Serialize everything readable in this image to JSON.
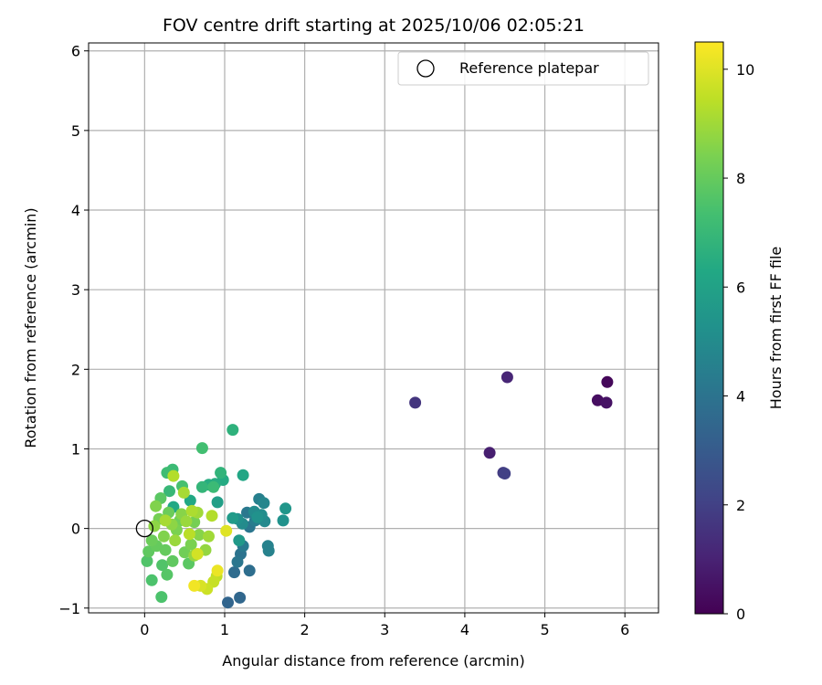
{
  "chart_data": {
    "type": "scatter",
    "title": "FOV centre drift starting at 2025/10/06 02:05:21",
    "xlabel": "Angular distance from reference (arcmin)",
    "ylabel": "Rotation from reference (arcmin)",
    "xlim": [
      -0.7,
      6.42
    ],
    "ylim": [
      -1.06,
      6.1
    ],
    "xticks": [
      0,
      1,
      2,
      3,
      4,
      5,
      6
    ],
    "yticks": [
      -1,
      0,
      1,
      2,
      3,
      4,
      5,
      6
    ],
    "grid": true,
    "legend": {
      "position": "top-right",
      "entries": [
        "Reference platepar"
      ]
    },
    "reference_point": {
      "x": 0,
      "y": 0,
      "label": "Reference platepar"
    },
    "colorbar": {
      "label": "Hours from first FF file",
      "colormap": "viridis",
      "range": [
        0,
        10.5
      ],
      "ticks": [
        0,
        2,
        4,
        6,
        8,
        10
      ]
    },
    "points": [
      {
        "x": 5.78,
        "y": 1.84,
        "c": 0.2
      },
      {
        "x": 5.66,
        "y": 1.61,
        "c": 0.4
      },
      {
        "x": 5.77,
        "y": 1.58,
        "c": 0.5
      },
      {
        "x": 4.31,
        "y": 0.95,
        "c": 0.9
      },
      {
        "x": 4.53,
        "y": 1.9,
        "c": 1.1
      },
      {
        "x": 3.38,
        "y": 1.58,
        "c": 1.6
      },
      {
        "x": 4.48,
        "y": 0.7,
        "c": 1.8
      },
      {
        "x": 4.5,
        "y": 0.69,
        "c": 2.0
      },
      {
        "x": 1.04,
        "y": -0.93,
        "c": 3.4
      },
      {
        "x": 1.19,
        "y": -0.87,
        "c": 3.5
      },
      {
        "x": 1.12,
        "y": -0.55,
        "c": 3.7
      },
      {
        "x": 1.31,
        "y": -0.53,
        "c": 3.8
      },
      {
        "x": 1.2,
        "y": -0.32,
        "c": 4.0
      },
      {
        "x": 1.16,
        "y": -0.42,
        "c": 4.1
      },
      {
        "x": 1.31,
        "y": 0.02,
        "c": 4.1
      },
      {
        "x": 1.28,
        "y": 0.2,
        "c": 4.2
      },
      {
        "x": 1.23,
        "y": -0.22,
        "c": 4.3
      },
      {
        "x": 1.38,
        "y": 0.1,
        "c": 4.4
      },
      {
        "x": 1.43,
        "y": 0.37,
        "c": 4.5
      },
      {
        "x": 1.54,
        "y": -0.22,
        "c": 4.6
      },
      {
        "x": 1.55,
        "y": -0.28,
        "c": 4.6
      },
      {
        "x": 1.49,
        "y": 0.32,
        "c": 4.8
      },
      {
        "x": 1.5,
        "y": 0.09,
        "c": 4.9
      },
      {
        "x": 1.22,
        "y": 0.06,
        "c": 5.0
      },
      {
        "x": 1.37,
        "y": 0.21,
        "c": 5.0
      },
      {
        "x": 1.46,
        "y": 0.17,
        "c": 5.1
      },
      {
        "x": 1.16,
        "y": 0.12,
        "c": 5.2
      },
      {
        "x": 1.41,
        "y": 0.14,
        "c": 5.3
      },
      {
        "x": 1.73,
        "y": 0.1,
        "c": 5.3
      },
      {
        "x": 1.76,
        "y": 0.25,
        "c": 5.5
      },
      {
        "x": 1.18,
        "y": -0.15,
        "c": 5.6
      },
      {
        "x": 1.1,
        "y": 0.13,
        "c": 5.7
      },
      {
        "x": 0.91,
        "y": 0.33,
        "c": 5.9
      },
      {
        "x": 1.23,
        "y": 0.67,
        "c": 6.2
      },
      {
        "x": 0.57,
        "y": 0.35,
        "c": 6.3
      },
      {
        "x": 0.36,
        "y": 0.27,
        "c": 6.3
      },
      {
        "x": 0.98,
        "y": 0.61,
        "c": 6.4
      },
      {
        "x": 0.88,
        "y": 0.56,
        "c": 6.5
      },
      {
        "x": 0.8,
        "y": 0.55,
        "c": 6.5
      },
      {
        "x": 1.1,
        "y": 1.24,
        "c": 6.7
      },
      {
        "x": 0.95,
        "y": 0.7,
        "c": 6.8
      },
      {
        "x": 0.72,
        "y": 0.52,
        "c": 6.9
      },
      {
        "x": 0.31,
        "y": 0.47,
        "c": 7.0
      },
      {
        "x": 0.35,
        "y": 0.74,
        "c": 7.1
      },
      {
        "x": 0.86,
        "y": 0.52,
        "c": 7.1
      },
      {
        "x": 0.28,
        "y": 0.7,
        "c": 7.2
      },
      {
        "x": 0.72,
        "y": 1.01,
        "c": 7.3
      },
      {
        "x": 0.47,
        "y": 0.53,
        "c": 7.4
      },
      {
        "x": 0.09,
        "y": -0.65,
        "c": 7.5
      },
      {
        "x": 0.21,
        "y": -0.86,
        "c": 7.5
      },
      {
        "x": 0.22,
        "y": -0.46,
        "c": 7.6
      },
      {
        "x": 0.03,
        "y": -0.41,
        "c": 7.6
      },
      {
        "x": 0.28,
        "y": -0.58,
        "c": 7.7
      },
      {
        "x": 0.55,
        "y": -0.44,
        "c": 7.8
      },
      {
        "x": 0.2,
        "y": 0.38,
        "c": 7.8
      },
      {
        "x": 0.35,
        "y": -0.41,
        "c": 7.9
      },
      {
        "x": 0.05,
        "y": -0.29,
        "c": 7.9
      },
      {
        "x": 0.15,
        "y": -0.22,
        "c": 8.0
      },
      {
        "x": 0.26,
        "y": -0.27,
        "c": 8.0
      },
      {
        "x": 0.09,
        "y": -0.15,
        "c": 8.1
      },
      {
        "x": 0.3,
        "y": 0.2,
        "c": 8.1
      },
      {
        "x": 0.44,
        "y": 0.1,
        "c": 8.2
      },
      {
        "x": 0.5,
        "y": -0.3,
        "c": 8.2
      },
      {
        "x": 0.62,
        "y": 0.08,
        "c": 8.3
      },
      {
        "x": 0.18,
        "y": 0.12,
        "c": 8.3
      },
      {
        "x": 0.4,
        "y": -0.02,
        "c": 8.4
      },
      {
        "x": 0.58,
        "y": -0.2,
        "c": 8.4
      },
      {
        "x": 0.14,
        "y": 0.28,
        "c": 8.5
      },
      {
        "x": 0.24,
        "y": -0.1,
        "c": 8.5
      },
      {
        "x": 0.68,
        "y": -0.08,
        "c": 8.6
      },
      {
        "x": 0.46,
        "y": 0.18,
        "c": 8.6
      },
      {
        "x": 0.34,
        "y": 0.05,
        "c": 8.7
      },
      {
        "x": 0.12,
        "y": 0.03,
        "c": 8.7
      },
      {
        "x": 0.62,
        "y": -0.34,
        "c": 8.8
      },
      {
        "x": 0.76,
        "y": -0.27,
        "c": 8.8
      },
      {
        "x": 0.52,
        "y": 0.09,
        "c": 8.9
      },
      {
        "x": 0.38,
        "y": -0.15,
        "c": 8.9
      },
      {
        "x": 0.66,
        "y": 0.2,
        "c": 9.0
      },
      {
        "x": 0.8,
        "y": -0.1,
        "c": 9.0
      },
      {
        "x": 0.26,
        "y": 0.1,
        "c": 9.1
      },
      {
        "x": 0.49,
        "y": 0.45,
        "c": 9.1
      },
      {
        "x": 0.59,
        "y": 0.22,
        "c": 9.2
      },
      {
        "x": 0.36,
        "y": 0.66,
        "c": 9.3
      },
      {
        "x": 0.84,
        "y": 0.16,
        "c": 9.3
      },
      {
        "x": 0.56,
        "y": -0.07,
        "c": 9.4
      },
      {
        "x": 0.9,
        "y": -0.6,
        "c": 9.5
      },
      {
        "x": 0.86,
        "y": -0.67,
        "c": 9.6
      },
      {
        "x": 0.78,
        "y": -0.76,
        "c": 9.7
      },
      {
        "x": 0.66,
        "y": -0.32,
        "c": 9.8
      },
      {
        "x": 0.7,
        "y": -0.72,
        "c": 9.9
      },
      {
        "x": 1.02,
        "y": -0.03,
        "c": 10.0
      },
      {
        "x": 0.91,
        "y": -0.53,
        "c": 10.2
      },
      {
        "x": 0.62,
        "y": -0.72,
        "c": 10.3
      }
    ]
  }
}
